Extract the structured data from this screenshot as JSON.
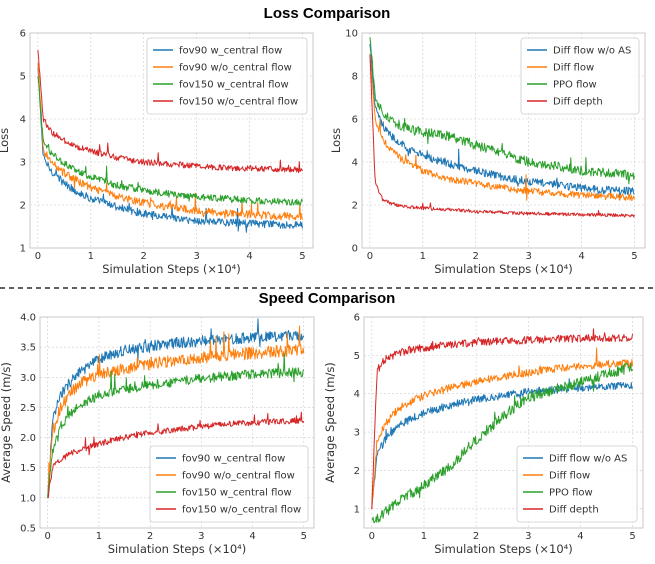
{
  "titles": {
    "loss": "Loss Comparison",
    "speed": "Speed Comparison"
  },
  "colors": {
    "blue": "#1f77b4",
    "orange": "#ff7f0e",
    "green": "#2ca02c",
    "red": "#d62728"
  },
  "chart_data": [
    {
      "id": "loss_fov",
      "type": "line",
      "title": "",
      "xlabel": "Simulation Steps (×10⁴)",
      "ylabel": "Loss",
      "xlim": [
        -0.15,
        5.2
      ],
      "ylim": [
        1,
        6
      ],
      "xticks": [
        0,
        1,
        2,
        3,
        4,
        5
      ],
      "yticks": [
        1,
        2,
        3,
        4,
        5,
        6
      ],
      "legend_position": "top-right",
      "x": [
        0,
        0.1,
        0.25,
        0.5,
        0.75,
        1,
        1.5,
        2,
        2.5,
        3,
        3.5,
        4,
        4.5,
        5
      ],
      "series": [
        {
          "name": "fov90 w_central flow",
          "color": "#1f77b4",
          "noise": 0.09,
          "values": [
            5.2,
            3.1,
            2.8,
            2.5,
            2.3,
            2.15,
            1.95,
            1.8,
            1.7,
            1.63,
            1.6,
            1.57,
            1.55,
            1.53
          ]
        },
        {
          "name": "fov90 w/o_central flow",
          "color": "#ff7f0e",
          "noise": 0.09,
          "values": [
            5.3,
            3.3,
            3.0,
            2.75,
            2.55,
            2.4,
            2.2,
            2.05,
            1.95,
            1.87,
            1.82,
            1.78,
            1.75,
            1.72
          ]
        },
        {
          "name": "fov150 w_central flow",
          "color": "#2ca02c",
          "noise": 0.08,
          "values": [
            5.0,
            3.5,
            3.2,
            2.95,
            2.8,
            2.65,
            2.45,
            2.35,
            2.25,
            2.2,
            2.15,
            2.1,
            2.08,
            2.06
          ]
        },
        {
          "name": "fov150 w/o_central flow",
          "color": "#d62728",
          "noise": 0.07,
          "values": [
            5.6,
            4.0,
            3.7,
            3.5,
            3.35,
            3.25,
            3.1,
            3.0,
            2.95,
            2.9,
            2.87,
            2.85,
            2.83,
            2.82
          ]
        }
      ]
    },
    {
      "id": "loss_methods",
      "type": "line",
      "title": "",
      "xlabel": "Simulation Steps (×10⁴)",
      "ylabel": "Loss",
      "xlim": [
        -0.15,
        5.2
      ],
      "ylim": [
        0,
        10
      ],
      "xticks": [
        0,
        1,
        2,
        3,
        4,
        5
      ],
      "yticks": [
        0,
        2,
        4,
        6,
        8,
        10
      ],
      "legend_position": "top-right",
      "x": [
        0,
        0.1,
        0.25,
        0.5,
        0.75,
        1,
        1.5,
        2,
        2.5,
        3,
        3.5,
        4,
        4.5,
        5
      ],
      "series": [
        {
          "name": "Diff flow w/o AS",
          "color": "#1f77b4",
          "noise": 0.18,
          "values": [
            9.5,
            6.5,
            5.6,
            5.0,
            4.6,
            4.3,
            3.9,
            3.6,
            3.3,
            3.1,
            2.95,
            2.8,
            2.7,
            2.65
          ]
        },
        {
          "name": "Diff flow",
          "color": "#ff7f0e",
          "noise": 0.16,
          "values": [
            9.0,
            6.0,
            5.0,
            4.3,
            3.9,
            3.6,
            3.2,
            3.0,
            2.8,
            2.65,
            2.55,
            2.45,
            2.4,
            2.35
          ]
        },
        {
          "name": "PPO flow",
          "color": "#2ca02c",
          "noise": 0.22,
          "values": [
            9.8,
            7.0,
            6.3,
            5.8,
            5.5,
            5.4,
            5.2,
            4.8,
            4.4,
            4.0,
            3.8,
            3.6,
            3.5,
            3.35
          ]
        },
        {
          "name": "Diff depth",
          "color": "#d62728",
          "noise": 0.08,
          "values": [
            9.0,
            3.0,
            2.2,
            2.0,
            1.9,
            1.85,
            1.8,
            1.7,
            1.65,
            1.6,
            1.58,
            1.56,
            1.54,
            1.5
          ]
        }
      ]
    },
    {
      "id": "speed_fov",
      "type": "line",
      "title": "",
      "xlabel": "Simulation Steps (×10⁴)",
      "ylabel": "Average Speed (m/s)",
      "xlim": [
        -0.15,
        5.2
      ],
      "ylim": [
        0.5,
        4.0
      ],
      "xticks": [
        0,
        1,
        2,
        3,
        4,
        5
      ],
      "yticks": [
        0.5,
        1.0,
        1.5,
        2.0,
        2.5,
        3.0,
        3.5,
        4.0
      ],
      "legend_position": "bottom-right",
      "x": [
        0,
        0.1,
        0.25,
        0.5,
        0.75,
        1,
        1.5,
        2,
        2.5,
        3,
        3.5,
        4,
        4.5,
        5
      ],
      "series": [
        {
          "name": "fov90 w_central flow",
          "color": "#1f77b4",
          "noise": 0.09,
          "values": [
            1.0,
            2.3,
            2.7,
            3.0,
            3.15,
            3.3,
            3.45,
            3.52,
            3.57,
            3.6,
            3.63,
            3.66,
            3.68,
            3.7
          ]
        },
        {
          "name": "fov90 w/o_central flow",
          "color": "#ff7f0e",
          "noise": 0.1,
          "values": [
            1.0,
            2.1,
            2.5,
            2.8,
            2.95,
            3.05,
            3.15,
            3.22,
            3.28,
            3.33,
            3.37,
            3.4,
            3.43,
            3.45
          ]
        },
        {
          "name": "fov150 w_central flow",
          "color": "#2ca02c",
          "noise": 0.08,
          "values": [
            1.0,
            1.8,
            2.2,
            2.45,
            2.6,
            2.7,
            2.8,
            2.87,
            2.93,
            2.98,
            3.02,
            3.05,
            3.07,
            3.08
          ]
        },
        {
          "name": "fov150 w/o_central flow",
          "color": "#d62728",
          "noise": 0.05,
          "values": [
            1.0,
            1.5,
            1.65,
            1.75,
            1.82,
            1.9,
            2.0,
            2.08,
            2.13,
            2.18,
            2.22,
            2.25,
            2.27,
            2.28
          ]
        }
      ]
    },
    {
      "id": "speed_methods",
      "type": "line",
      "title": "",
      "xlabel": "Simulation Steps (×10⁴)",
      "ylabel": "Average Speed (m/s)",
      "xlim": [
        -0.15,
        5.2
      ],
      "ylim": [
        0.5,
        6.0
      ],
      "xticks": [
        0,
        1,
        2,
        3,
        4,
        5
      ],
      "yticks": [
        1,
        2,
        3,
        4,
        5,
        6
      ],
      "legend_position": "bottom-right",
      "x": [
        0,
        0.1,
        0.25,
        0.5,
        0.75,
        1,
        1.5,
        2,
        2.5,
        3,
        3.5,
        4,
        4.5,
        5
      ],
      "series": [
        {
          "name": "Diff flow w/o AS",
          "color": "#1f77b4",
          "noise": 0.1,
          "values": [
            1.0,
            2.4,
            2.8,
            3.15,
            3.35,
            3.5,
            3.7,
            3.85,
            3.95,
            4.05,
            4.1,
            4.15,
            4.2,
            4.22
          ]
        },
        {
          "name": "Diff flow",
          "color": "#ff7f0e",
          "noise": 0.1,
          "values": [
            1.0,
            2.8,
            3.2,
            3.6,
            3.8,
            3.95,
            4.15,
            4.3,
            4.45,
            4.55,
            4.65,
            4.72,
            4.77,
            4.8
          ]
        },
        {
          "name": "PPO flow",
          "color": "#2ca02c",
          "noise": 0.14,
          "values": [
            0.7,
            0.75,
            0.9,
            1.2,
            1.4,
            1.6,
            2.1,
            2.8,
            3.4,
            3.9,
            4.1,
            4.3,
            4.5,
            4.7
          ]
        },
        {
          "name": "Diff depth",
          "color": "#d62728",
          "noise": 0.1,
          "values": [
            1.0,
            4.6,
            4.9,
            5.05,
            5.15,
            5.2,
            5.28,
            5.33,
            5.37,
            5.4,
            5.42,
            5.44,
            5.45,
            5.47
          ]
        }
      ]
    }
  ]
}
